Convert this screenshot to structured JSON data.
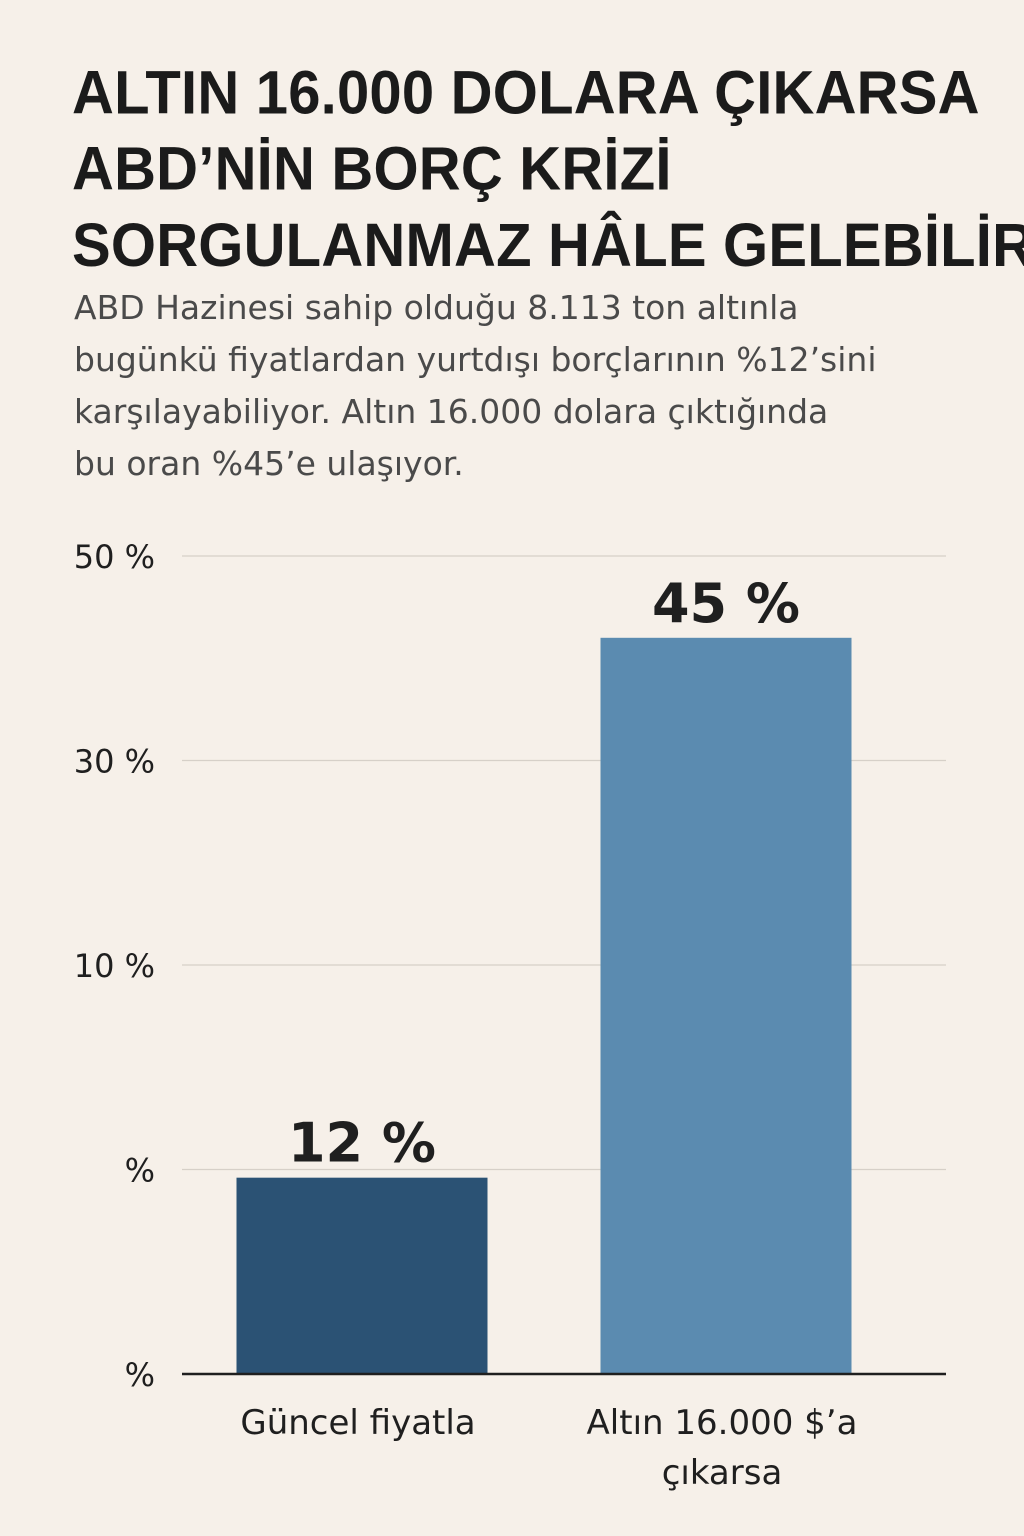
{
  "headline": {
    "line1": "ALTIN 16.000 DOLARA ÇIKARSA",
    "line2": "ABD’NİN BORÇ KRİZİ",
    "line3": "SORGULANMAZ HÂLE GELEBİLİR"
  },
  "subtitle": {
    "line1": "ABD Hazinesi sahip olduğu 8.113 ton altınla",
    "line2": "bugünkü fiyatlardan yurtdışı borçlarının %12’sini",
    "line3": "karşılayabiliyor. Altın 16.000 dolara çıktığında",
    "line4": "bu oran %45’e ulaşıyor."
  },
  "chart_data": {
    "type": "bar",
    "categories": [
      [
        "Güncel fiyatla"
      ],
      [
        "Altın 16.000 $’a",
        "çıkarsa"
      ]
    ],
    "values": [
      12,
      45
    ],
    "value_labels": [
      "12 %",
      "45 %"
    ],
    "bar_colors": [
      "#2b5274",
      "#5b8bb0"
    ],
    "ytick_labels": [
      "50 %",
      "30 %",
      "10 %",
      "%",
      "%"
    ],
    "ylim": [
      0,
      50
    ],
    "grid": true,
    "axis_color": "#1f1f1f",
    "grid_color": "#d6d0c8"
  }
}
